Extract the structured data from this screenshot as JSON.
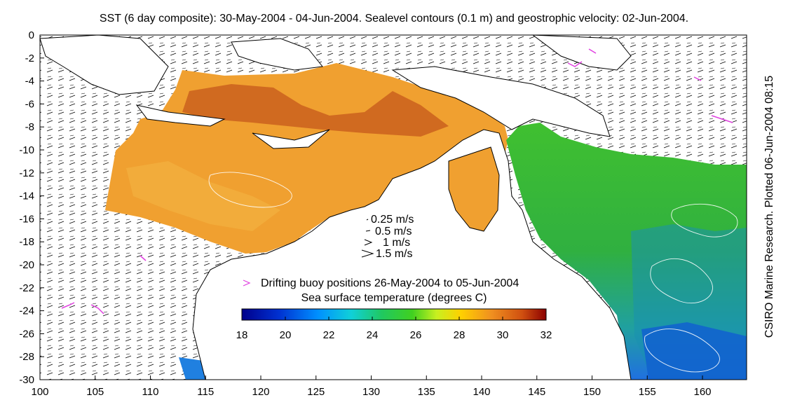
{
  "title": "SST (6 day composite): 30-May-2004 - 04-Jun-2004. Sealevel contours (0.1 m) and geostrophic velocity: 02-Jun-2004.",
  "side_note": "CSIRO Marine Research. Plotted 06-Jun-2004 08:15",
  "velocity_scale": {
    "labels": [
      "0.25 m/s",
      "0.5 m/s",
      "1 m/s",
      "1.5 m/s"
    ]
  },
  "buoy_legend": "Drifting buoy positions 26-May-2004 to 05-Jun-2004",
  "colorbar": {
    "title": "Sea surface temperature (degrees C)",
    "min": 18,
    "max": 32,
    "ticks": [
      "18",
      "20",
      "22",
      "24",
      "26",
      "28",
      "30",
      "32"
    ]
  },
  "axes": {
    "x_ticks": [
      "100",
      "105",
      "110",
      "115",
      "120",
      "125",
      "130",
      "135",
      "140",
      "145",
      "150",
      "155",
      "160"
    ],
    "y_ticks": [
      "0",
      "-2",
      "-4",
      "-6",
      "-8",
      "-10",
      "-12",
      "-14",
      "-16",
      "-18",
      "-20",
      "-22",
      "-24",
      "-26",
      "-28",
      "-30"
    ],
    "lon_range": [
      100,
      164
    ],
    "lat_range": [
      -30,
      0
    ]
  },
  "colors": {
    "land": "#ffffff",
    "buoy": "#e040e0",
    "contour": "#ffffff",
    "arrow": "#000000"
  }
}
